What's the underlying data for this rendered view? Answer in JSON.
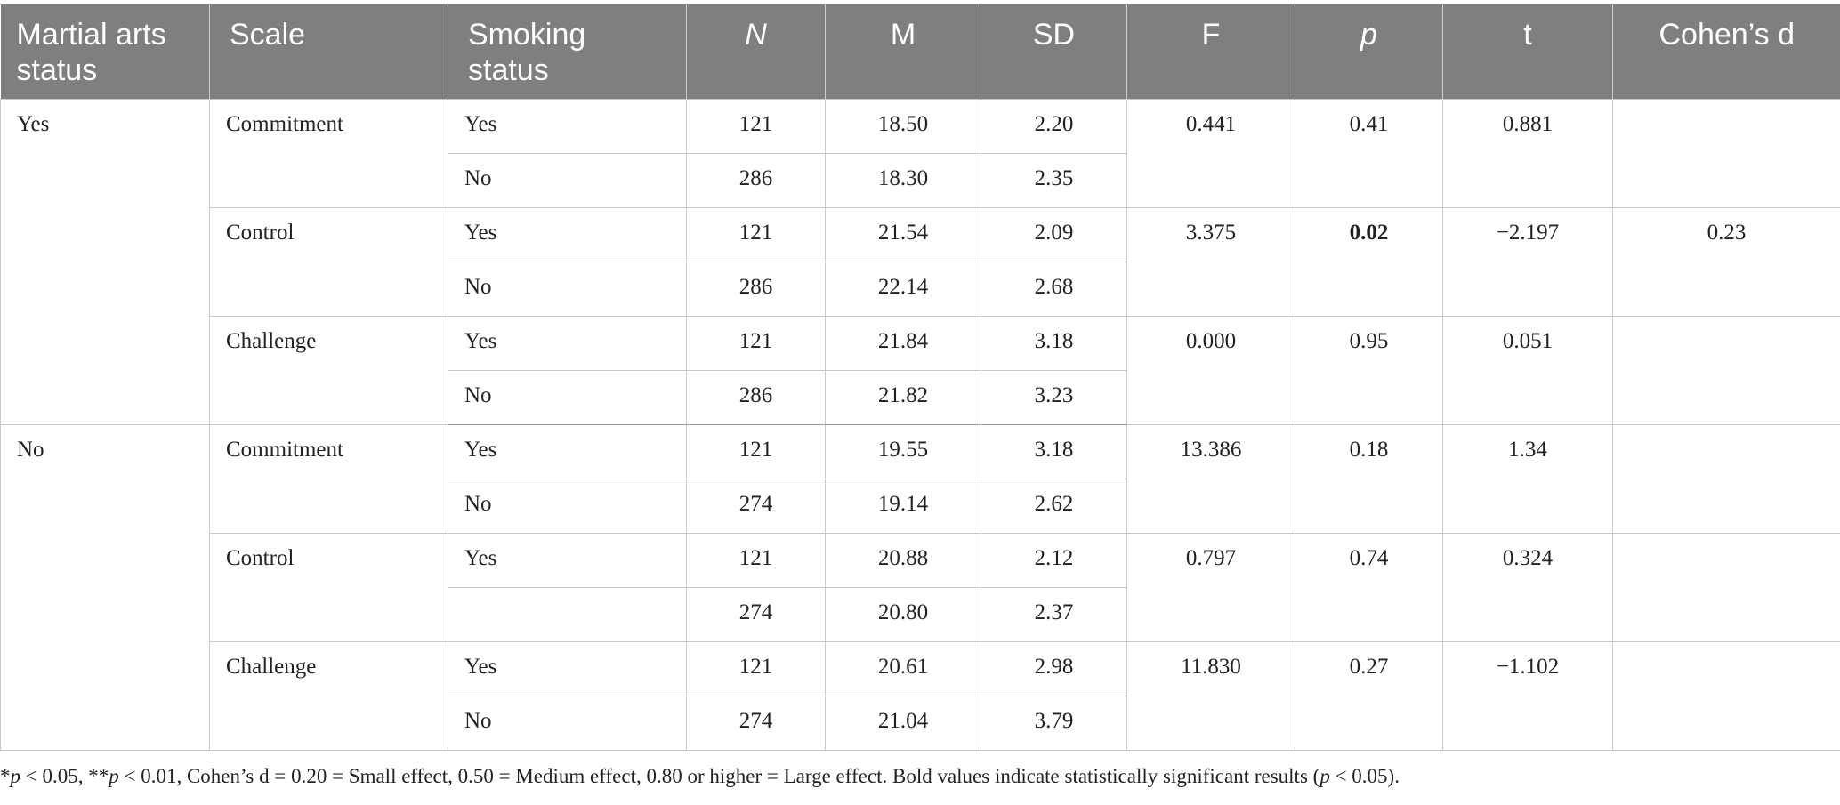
{
  "table": {
    "headers": {
      "martial": "Martial arts status",
      "scale": "Scale",
      "smoking": "Smoking status",
      "n": "N",
      "m": "M",
      "sd": "SD",
      "f": "F",
      "p": "p",
      "t": "t",
      "d": "Cohen’s d"
    },
    "groups": [
      {
        "martial": "Yes",
        "scales": [
          {
            "scale": "Commitment",
            "f": "0.441",
            "p": "0.41",
            "t": "0.881",
            "d": "",
            "rows": [
              {
                "smoking": "Yes",
                "n": "121",
                "m": "18.50",
                "sd": "2.20"
              },
              {
                "smoking": "No",
                "n": "286",
                "m": "18.30",
                "sd": "2.35"
              }
            ]
          },
          {
            "scale": "Control",
            "f": "3.375",
            "p": "0.02",
            "t": "−2.197",
            "d": "0.23",
            "rows": [
              {
                "smoking": "Yes",
                "n": "121",
                "m": "21.54",
                "sd": "2.09"
              },
              {
                "smoking": "No",
                "n": "286",
                "m": "22.14",
                "sd": "2.68"
              }
            ]
          },
          {
            "scale": "Challenge",
            "f": "0.000",
            "p": "0.95",
            "t": "0.051",
            "d": "",
            "rows": [
              {
                "smoking": "Yes",
                "n": "121",
                "m": "21.84",
                "sd": "3.18"
              },
              {
                "smoking": "No",
                "n": "286",
                "m": "21.82",
                "sd": "3.23"
              }
            ]
          }
        ]
      },
      {
        "martial": "No",
        "scales": [
          {
            "scale": "Commitment",
            "f": "13.386",
            "p": "0.18",
            "t": "1.34",
            "d": "",
            "rows": [
              {
                "smoking": "Yes",
                "n": "121",
                "m": "19.55",
                "sd": "3.18"
              },
              {
                "smoking": "No",
                "n": "274",
                "m": "19.14",
                "sd": "2.62"
              }
            ]
          },
          {
            "scale": "Control",
            "f": "0.797",
            "p": "0.74",
            "t": "0.324",
            "d": "",
            "rows": [
              {
                "smoking": "Yes",
                "n": "121",
                "m": "20.88",
                "sd": "2.12"
              },
              {
                "smoking": "",
                "n": "274",
                "m": "20.80",
                "sd": "2.37"
              }
            ]
          },
          {
            "scale": "Challenge",
            "f": "11.830",
            "p": "0.27",
            "t": "−1.102",
            "d": "",
            "rows": [
              {
                "smoking": "Yes",
                "n": "121",
                "m": "20.61",
                "sd": "2.98"
              },
              {
                "smoking": "No",
                "n": "274",
                "m": "21.04",
                "sd": "3.79"
              }
            ]
          }
        ]
      }
    ]
  },
  "footnote": {
    "star": "*",
    "p1": "p",
    "t1": " < 0.05, **",
    "p2": "p",
    "t2": " < 0.01, Cohen’s d = 0.20 = Small effect, 0.50 = Medium effect, 0.80 or higher = Large effect. Bold values indicate statistically significant results (",
    "p3": "p",
    "t3": " < 0.05)."
  },
  "colors": {
    "header_bg": "#7f7f7f",
    "header_text": "#ffffff",
    "border": "#c8c8c8"
  }
}
